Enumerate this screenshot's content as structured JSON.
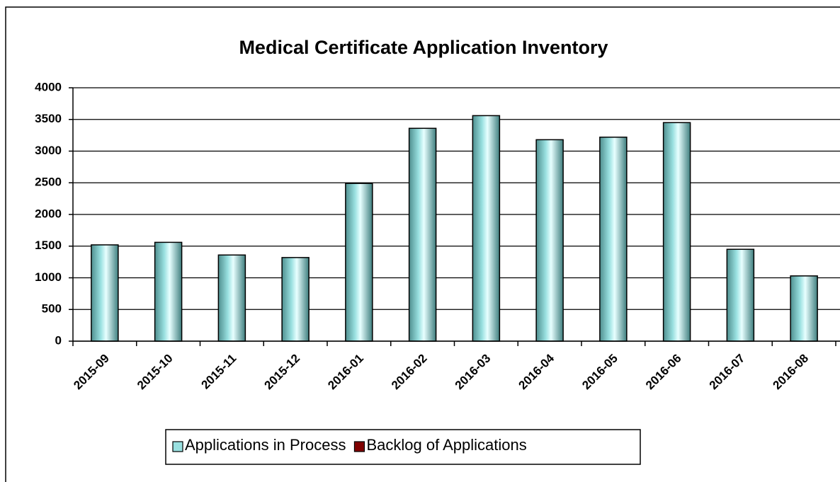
{
  "chart_data": {
    "type": "bar",
    "title": "Medical Certificate Application Inventory",
    "categories": [
      "2015-09",
      "2015-10",
      "2015-11",
      "2015-12",
      "2016-01",
      "2016-02",
      "2016-03",
      "2016-04",
      "2016-05",
      "2016-06",
      "2016-07",
      "2016-08"
    ],
    "series": [
      {
        "name": "Applications in Process",
        "color": "#99e0e0",
        "values": [
          1520,
          1560,
          1360,
          1320,
          2490,
          3360,
          3560,
          3180,
          3220,
          3450,
          1450,
          1030
        ]
      },
      {
        "name": "Backlog of Applications",
        "color": "#800000",
        "values": [
          null,
          null,
          null,
          null,
          null,
          null,
          null,
          null,
          null,
          null,
          null,
          null
        ]
      }
    ],
    "ylim": [
      0,
      4000
    ],
    "yticks": [
      0,
      500,
      1000,
      1500,
      2000,
      2500,
      3000,
      3500,
      4000
    ],
    "grid": true,
    "legend": "bottom"
  }
}
